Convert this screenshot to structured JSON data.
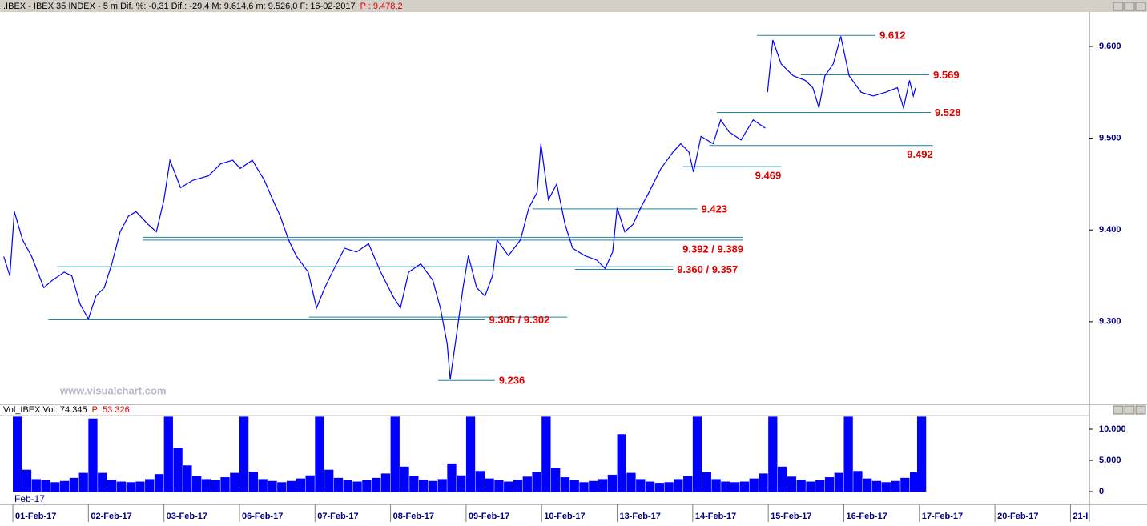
{
  "chart_data": [
    {
      "type": "line",
      "title": ".IBEX - IBEX 35 INDEX - 5 m Dif. %: -0,31 Dif.: -29,4 M: 9.614,6 m: 9.526,0 F: 16-02-2017",
      "subtitle": "P : 9.478,2",
      "watermark": "www.visualchart.com",
      "xlim": [
        -0.17,
        14.25
      ],
      "ylim": [
        9.21,
        9.6375
      ],
      "yticks": [
        {
          "value": 9.3,
          "label": "9.300"
        },
        {
          "value": 9.4,
          "label": "9.400"
        },
        {
          "value": 9.5,
          "label": "9.500"
        },
        {
          "value": 9.6,
          "label": "9.600"
        }
      ],
      "series": [
        {
          "name": "IBEX",
          "color": "#0000ff",
          "x": [
            -0.12,
            -0.04,
            0.02,
            0.13,
            0.25,
            0.41,
            0.52,
            0.68,
            0.78,
            0.89,
            1.0,
            1.1,
            1.21,
            1.31,
            1.42,
            1.53,
            1.63,
            1.79,
            1.9,
            2.0,
            2.08,
            2.22,
            2.38,
            2.59,
            2.75,
            2.91,
            3.01,
            3.17,
            3.33,
            3.44,
            3.54,
            3.65,
            3.75,
            3.91,
            4.02,
            4.13,
            4.23,
            4.39,
            4.55,
            4.71,
            4.87,
            5.03,
            5.13,
            5.24,
            5.4,
            5.56,
            5.66,
            5.75,
            5.79,
            5.87,
            5.96,
            6.03,
            6.14,
            6.25,
            6.35,
            6.41,
            6.56,
            6.72,
            6.83,
            6.94,
            6.99,
            7.09,
            7.2,
            7.31,
            7.41,
            7.57,
            7.73,
            7.84,
            7.94,
            8.0,
            8.1,
            8.21,
            8.31,
            8.42,
            8.58,
            8.74,
            8.84,
            8.95,
            9.01,
            9.11,
            9.27,
            9.37,
            9.48,
            9.64,
            9.8,
            9.96,
            null,
            9.99,
            10.06,
            10.17,
            10.33,
            10.49,
            10.59,
            10.67,
            10.75,
            10.86,
            10.96,
            11.07,
            11.23,
            11.39,
            11.55,
            11.71,
            11.79,
            11.87,
            11.92,
            11.95
          ],
          "values": [
            9.371,
            9.35,
            9.42,
            9.389,
            9.371,
            9.337,
            9.345,
            9.354,
            9.35,
            9.319,
            9.303,
            9.328,
            9.337,
            9.363,
            9.398,
            9.415,
            9.42,
            9.406,
            9.398,
            9.433,
            9.476,
            9.446,
            9.454,
            9.459,
            9.472,
            9.476,
            9.467,
            9.476,
            9.454,
            9.433,
            9.415,
            9.389,
            9.372,
            9.354,
            9.315,
            9.337,
            9.354,
            9.38,
            9.376,
            9.385,
            9.354,
            9.328,
            9.315,
            9.354,
            9.363,
            9.345,
            9.315,
            9.276,
            9.237,
            9.284,
            9.337,
            9.372,
            9.337,
            9.328,
            9.35,
            9.389,
            9.372,
            9.389,
            9.424,
            9.441,
            9.494,
            9.433,
            9.45,
            9.406,
            9.38,
            9.372,
            9.367,
            9.358,
            9.376,
            9.424,
            9.398,
            9.406,
            9.424,
            9.441,
            9.467,
            9.485,
            9.494,
            9.485,
            9.463,
            9.502,
            9.494,
            9.52,
            9.507,
            9.498,
            9.52,
            9.511,
            null,
            9.55,
            9.607,
            9.581,
            9.568,
            9.563,
            9.555,
            9.533,
            9.568,
            9.581,
            9.611,
            9.568,
            9.55,
            9.546,
            9.55,
            9.555,
            9.533,
            9.563,
            9.546,
            9.555
          ]
        }
      ],
      "levels": [
        {
          "label": "9.612",
          "label_position": "right",
          "lines": [
            {
              "value": 9.612,
              "x": [
                9.85,
                11.42
              ]
            }
          ]
        },
        {
          "label": "9.569",
          "label_position": "right",
          "lines": [
            {
              "value": 9.569,
              "x": [
                10.43,
                12.13
              ]
            }
          ]
        },
        {
          "label": "9.528",
          "label_position": "right",
          "lines": [
            {
              "value": 9.528,
              "x": [
                9.32,
                12.15
              ]
            }
          ]
        },
        {
          "label": "9.492",
          "label_position": "below",
          "lines": [
            {
              "value": 9.492,
              "x": [
                9.22,
                12.18
              ]
            }
          ]
        },
        {
          "label": "9.469",
          "label_position": "below",
          "lines": [
            {
              "value": 9.469,
              "x": [
                8.87,
                10.17
              ]
            }
          ]
        },
        {
          "label": "9.423",
          "label_position": "right",
          "lines": [
            {
              "value": 9.423,
              "x": [
                6.88,
                9.06
              ]
            }
          ]
        },
        {
          "label": "9.392 / 9.389",
          "label_position": "below",
          "lines": [
            {
              "value": 9.392,
              "x": [
                1.72,
                9.67
              ]
            },
            {
              "value": 9.389,
              "x": [
                1.72,
                9.67
              ]
            }
          ]
        },
        {
          "label": "9.360 / 9.357",
          "label_position": "right",
          "lines": [
            {
              "value": 9.36,
              "x": [
                0.59,
                8.74
              ]
            },
            {
              "value": 9.357,
              "x": [
                7.44,
                8.74
              ]
            }
          ]
        },
        {
          "label": "9.305 / 9.302",
          "label_position": "right",
          "lines": [
            {
              "value": 9.305,
              "x": [
                3.92,
                7.34
              ]
            },
            {
              "value": 9.302,
              "x": [
                0.47,
                6.25
              ]
            }
          ]
        },
        {
          "label": "9.236",
          "label_position": "right",
          "lines": [
            {
              "value": 9.236,
              "x": [
                5.63,
                6.38
              ]
            }
          ]
        }
      ],
      "level_color": "#1a86a8",
      "label_color": "#e00000"
    },
    {
      "type": "bar",
      "title": "Vol_IBEX Vol: 74.345",
      "subtitle": "P: 53.326",
      "period_label": "Feb-17",
      "xlim": [
        -0.17,
        14.25
      ],
      "ylim": [
        -2050,
        12180
      ],
      "yticks": [
        0,
        {
          "value": 5000,
          "label": "5.000"
        },
        {
          "value": 10000,
          "label": "10.000"
        }
      ],
      "xticks": [
        {
          "value": 0,
          "label": "01-Feb-17"
        },
        {
          "value": 1,
          "label": "02-Feb-17"
        },
        {
          "value": 2,
          "label": "03-Feb-17"
        },
        {
          "value": 3,
          "label": "06-Feb-17"
        },
        {
          "value": 4,
          "label": "07-Feb-17"
        },
        {
          "value": 5,
          "label": "08-Feb-17"
        },
        {
          "value": 6,
          "label": "09-Feb-17"
        },
        {
          "value": 7,
          "label": "10-Feb-17"
        },
        {
          "value": 8,
          "label": "13-Feb-17"
        },
        {
          "value": 9,
          "label": "14-Feb-17"
        },
        {
          "value": 10,
          "label": "15-Feb-17"
        },
        {
          "value": 11,
          "label": "16-Feb-17"
        },
        {
          "value": 12,
          "label": "17-Feb-17"
        },
        {
          "value": 13,
          "label": "20-Feb-17"
        },
        {
          "value": 14,
          "label": "21-I"
        }
      ],
      "series": [
        {
          "name": "Vol_IBEX",
          "color": "#0000ff",
          "x": [
            0,
            0.125,
            0.25,
            0.375,
            0.5,
            0.625,
            0.75,
            0.875,
            1,
            1.125,
            1.25,
            1.375,
            1.5,
            1.625,
            1.75,
            1.875,
            2,
            2.125,
            2.25,
            2.375,
            2.5,
            2.625,
            2.75,
            2.875,
            3,
            3.125,
            3.25,
            3.375,
            3.5,
            3.625,
            3.75,
            3.875,
            4,
            4.125,
            4.25,
            4.375,
            4.5,
            4.625,
            4.75,
            4.875,
            5,
            5.125,
            5.25,
            5.375,
            5.5,
            5.625,
            5.75,
            5.875,
            6,
            6.125,
            6.25,
            6.375,
            6.5,
            6.625,
            6.75,
            6.875,
            7,
            7.125,
            7.25,
            7.375,
            7.5,
            7.625,
            7.75,
            7.875,
            8,
            8.125,
            8.25,
            8.375,
            8.5,
            8.625,
            8.75,
            8.875,
            9,
            9.125,
            9.25,
            9.375,
            9.5,
            9.625,
            9.75,
            9.875,
            10,
            10.125,
            10.25,
            10.375,
            10.5,
            10.625,
            10.75,
            10.875,
            11,
            11.125,
            11.25,
            11.375,
            11.5,
            11.625,
            11.75,
            11.875,
            11.97
          ],
          "values": [
            12000,
            3500,
            2000,
            1800,
            1500,
            1700,
            2200,
            3000,
            11700,
            3000,
            1900,
            1600,
            1500,
            1600,
            2000,
            2800,
            12000,
            7000,
            4200,
            2500,
            2000,
            1800,
            2300,
            3000,
            12000,
            3200,
            2000,
            1700,
            1500,
            1700,
            2100,
            2600,
            12000,
            3500,
            2200,
            1800,
            1600,
            1800,
            2200,
            2900,
            12000,
            4000,
            2500,
            1900,
            1700,
            2000,
            4500,
            2600,
            12000,
            3300,
            2100,
            1800,
            1600,
            1900,
            2400,
            3100,
            12000,
            3800,
            2300,
            1800,
            1500,
            1700,
            2000,
            2700,
            9200,
            3000,
            2000,
            1600,
            1400,
            1500,
            2000,
            2500,
            12000,
            3100,
            2000,
            1600,
            1500,
            1600,
            2100,
            2900,
            12000,
            4000,
            2400,
            1900,
            1600,
            1800,
            2300,
            3000,
            12000,
            3300,
            2100,
            1700,
            1500,
            1700,
            2200,
            3100,
            12000
          ]
        }
      ]
    }
  ]
}
